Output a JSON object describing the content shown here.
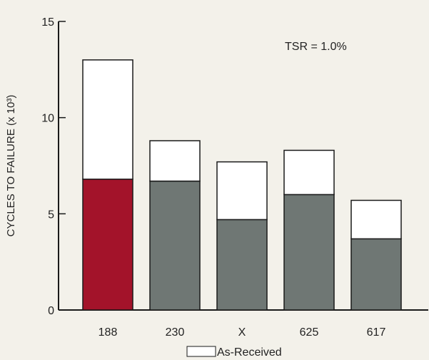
{
  "chart_data": {
    "type": "bar",
    "stacked": true,
    "categories": [
      "188",
      "230",
      "X",
      "625",
      "617"
    ],
    "series": [
      {
        "name": "",
        "values": [
          6.8,
          6.7,
          4.7,
          6.0,
          3.7
        ]
      },
      {
        "name": "As-Received",
        "values": [
          6.2,
          2.1,
          3.0,
          2.3,
          2.0
        ]
      }
    ],
    "totals": [
      13.0,
      8.8,
      7.7,
      8.3,
      5.7
    ],
    "highlight_category": "188",
    "ylabel": "CYCLES TO FAILURE (x 10³)",
    "ylim": [
      0,
      15
    ],
    "yticks": [
      0,
      5,
      10,
      15
    ],
    "annotation": "TSR = 1.0%",
    "legend_position": "bottom",
    "grid": false,
    "colors": {
      "lower_default": "#6f7774",
      "lower_highlight": "#a3132a",
      "upper": "#ffffff",
      "outline": "#1a1a1a",
      "background": "#f3f1ea"
    }
  }
}
